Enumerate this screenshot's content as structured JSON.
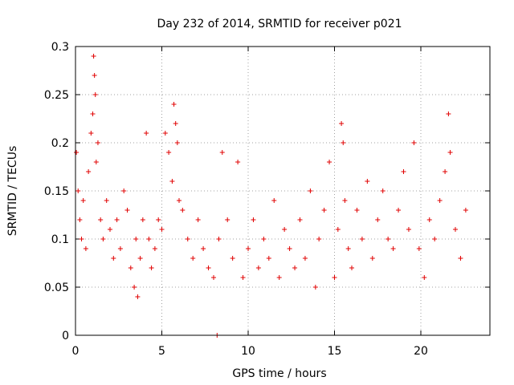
{
  "chart_data": {
    "type": "scatter",
    "title": "Day 232 of 2014, SRMTID for receiver p021",
    "xlabel": "GPS time / hours",
    "ylabel": "SRMTID / TECUs",
    "xlim": [
      0,
      24
    ],
    "ylim": [
      0,
      0.3
    ],
    "xticks": [
      0,
      5,
      10,
      15,
      20
    ],
    "xtick_labels": [
      "0",
      "5",
      "10",
      "15",
      "20"
    ],
    "yticks": [
      0,
      0.05,
      0.1,
      0.15,
      0.2,
      0.25,
      0.3
    ],
    "ytick_labels": [
      "0",
      "0.05",
      "0.1",
      "0.15",
      "0.2",
      "0.25",
      "0.3"
    ],
    "grid": true,
    "legend": "none",
    "marker": "plus",
    "color": "#e00000",
    "series": [
      {
        "name": "SRMTID",
        "x": [
          0.05,
          0.15,
          0.25,
          0.35,
          0.45,
          0.6,
          0.75,
          0.9,
          1.0,
          1.05,
          1.1,
          1.15,
          1.2,
          1.3,
          1.45,
          1.6,
          1.8,
          2.0,
          2.2,
          2.4,
          2.6,
          2.8,
          3.0,
          3.2,
          3.4,
          3.5,
          3.6,
          3.75,
          3.9,
          4.1,
          4.25,
          4.4,
          4.6,
          4.8,
          5.0,
          5.2,
          5.4,
          5.6,
          5.7,
          5.8,
          5.9,
          6.0,
          6.2,
          6.5,
          6.8,
          7.1,
          7.4,
          7.7,
          8.0,
          8.3,
          8.5,
          8.8,
          9.1,
          9.4,
          9.7,
          10.0,
          10.3,
          10.6,
          10.9,
          11.2,
          11.5,
          11.8,
          12.1,
          12.4,
          12.7,
          13.0,
          13.3,
          13.6,
          13.9,
          14.1,
          14.4,
          14.7,
          15.0,
          15.2,
          15.4,
          15.5,
          15.6,
          15.8,
          16.0,
          16.3,
          16.6,
          16.9,
          17.2,
          17.5,
          17.8,
          18.1,
          18.4,
          18.7,
          19.0,
          19.3,
          19.6,
          19.9,
          20.2,
          20.5,
          20.8,
          21.1,
          21.4,
          21.6,
          21.7,
          22.0,
          22.3,
          22.6,
          8.2
        ],
        "y": [
          0.19,
          0.15,
          0.12,
          0.1,
          0.14,
          0.09,
          0.17,
          0.21,
          0.23,
          0.29,
          0.27,
          0.25,
          0.18,
          0.2,
          0.12,
          0.1,
          0.14,
          0.11,
          0.08,
          0.12,
          0.09,
          0.15,
          0.13,
          0.07,
          0.05,
          0.1,
          0.04,
          0.08,
          0.12,
          0.21,
          0.1,
          0.07,
          0.09,
          0.12,
          0.11,
          0.21,
          0.19,
          0.16,
          0.24,
          0.22,
          0.2,
          0.14,
          0.13,
          0.1,
          0.08,
          0.12,
          0.09,
          0.07,
          0.06,
          0.1,
          0.19,
          0.12,
          0.08,
          0.18,
          0.06,
          0.09,
          0.12,
          0.07,
          0.1,
          0.08,
          0.14,
          0.06,
          0.11,
          0.09,
          0.07,
          0.12,
          0.08,
          0.15,
          0.05,
          0.1,
          0.13,
          0.18,
          0.06,
          0.11,
          0.22,
          0.2,
          0.14,
          0.09,
          0.07,
          0.13,
          0.1,
          0.16,
          0.08,
          0.12,
          0.15,
          0.1,
          0.09,
          0.13,
          0.17,
          0.11,
          0.2,
          0.09,
          0.06,
          0.12,
          0.1,
          0.14,
          0.17,
          0.23,
          0.19,
          0.11,
          0.08,
          0.13,
          0.0
        ]
      }
    ]
  }
}
